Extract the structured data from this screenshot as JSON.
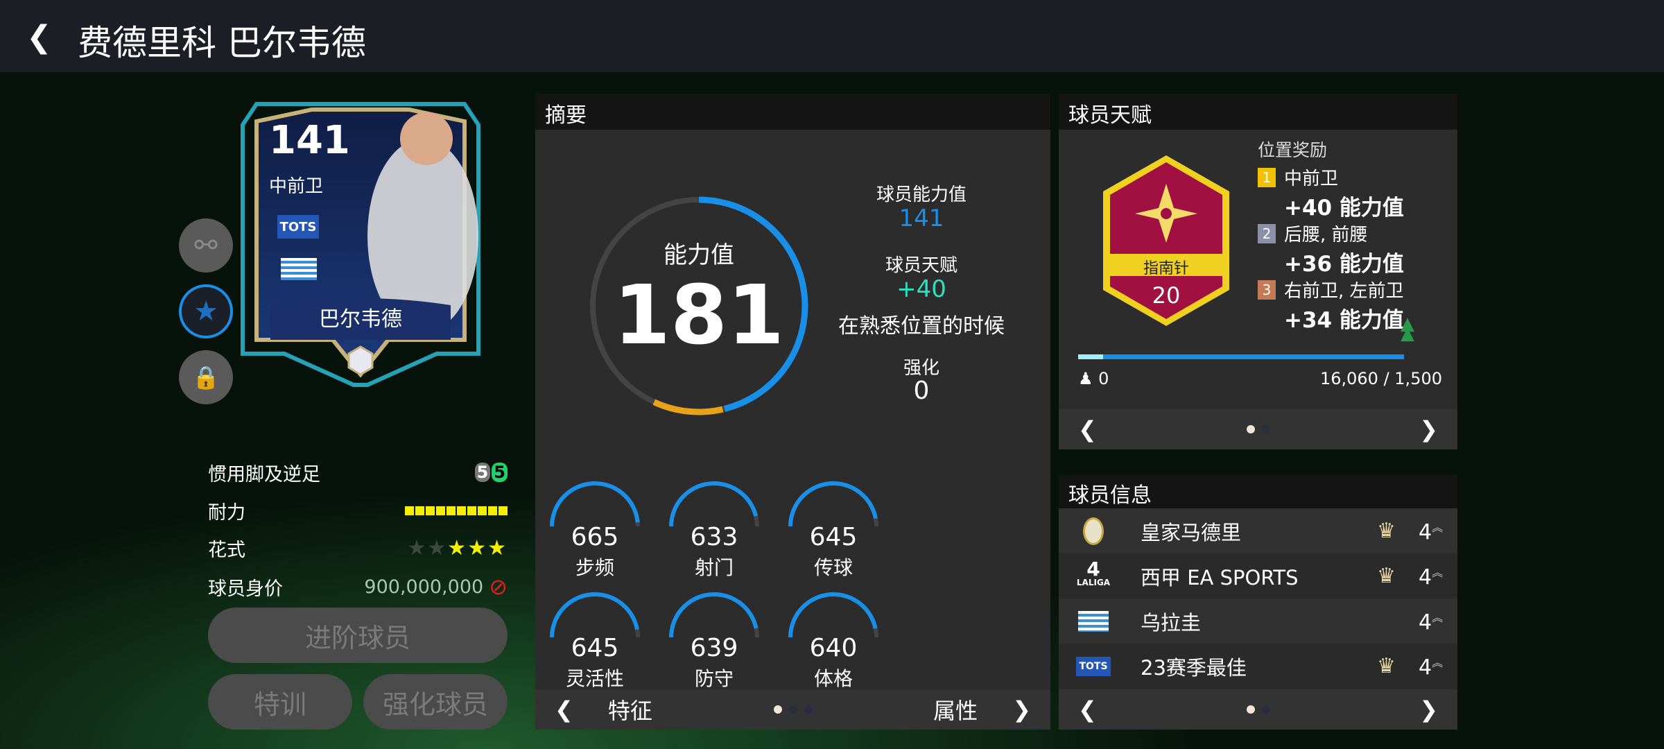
{
  "header": {
    "back_icon": "chevron-left-icon",
    "title": "费德里科 巴尔韦德"
  },
  "card": {
    "rating": "141",
    "position": "中前卫",
    "badge": "TOTS",
    "nation": "uruguay-flag",
    "name": "巴尔韦德"
  },
  "side_buttons": [
    "share-icon",
    "star-icon",
    "lock-icon"
  ],
  "attributes": [
    {
      "label": "惯用脚及逆足",
      "weak_foot": "5",
      "strong_foot": "5"
    },
    {
      "label": "耐力",
      "stamina_level": 10,
      "stamina_max": 10
    },
    {
      "label": "花式",
      "stars_filled": 3,
      "stars_max": 5
    },
    {
      "label": "球员身价",
      "value": "900,000,000",
      "icon": "not-tradable-icon"
    }
  ],
  "buttons": {
    "advance": "进阶球员",
    "training": "特训",
    "enhance": "强化球员"
  },
  "summary": {
    "title": "摘要",
    "ovr_label": "能力值",
    "ovr": "181",
    "player_ovr_label": "球员能力值",
    "player_ovr": "141",
    "talent_label": "球员天赋",
    "talent_bonus": "+40",
    "talent_note": "在熟悉位置的时候",
    "enhance_label": "强化",
    "enhance_value": "0",
    "colors": {
      "base": "#1a8fe8",
      "bonus": "#e8a21a",
      "talent_text": "#2ee0c0"
    },
    "stats": [
      {
        "value": "665",
        "label": "步频"
      },
      {
        "value": "633",
        "label": "射门"
      },
      {
        "value": "645",
        "label": "传球"
      },
      {
        "value": "645",
        "label": "灵活性"
      },
      {
        "value": "639",
        "label": "防守"
      },
      {
        "value": "640",
        "label": "体格"
      }
    ],
    "nav": {
      "prev": "特征",
      "next": "属性",
      "page": 1,
      "pages": 3
    }
  },
  "talent": {
    "title": "球员天赋",
    "badge_name": "指南针",
    "badge_level": "20",
    "rewards_title": "位置奖励",
    "rewards": [
      {
        "rank": "1",
        "positions": "中前卫",
        "bonus": "+40 能力值",
        "color": "#f2c200"
      },
      {
        "rank": "2",
        "positions": "后腰, 前腰",
        "bonus": "+36 能力值",
        "color": "#8a90a8"
      },
      {
        "rank": "3",
        "positions": "右前卫, 左前卫",
        "bonus": "+34 能力值",
        "color": "#c47a55"
      }
    ],
    "progress_left": "0",
    "progress_right": "16,060 / 1,500",
    "progress_fraction": 1.0,
    "page": 1,
    "pages": 2
  },
  "info": {
    "title": "球员信息",
    "rows": [
      {
        "icon": "real-madrid-crest-icon",
        "name": "皇家马德里",
        "crown": true,
        "level": "4"
      },
      {
        "icon": "laliga-logo-icon",
        "name": "西甲 EA SPORTS",
        "crown": true,
        "level": "4"
      },
      {
        "icon": "uruguay-flag-icon",
        "name": "乌拉圭",
        "crown": false,
        "level": "4"
      },
      {
        "icon": "tots-badge-icon",
        "name": "23赛季最佳",
        "crown": true,
        "level": "4"
      }
    ],
    "page": 1,
    "pages": 2
  }
}
